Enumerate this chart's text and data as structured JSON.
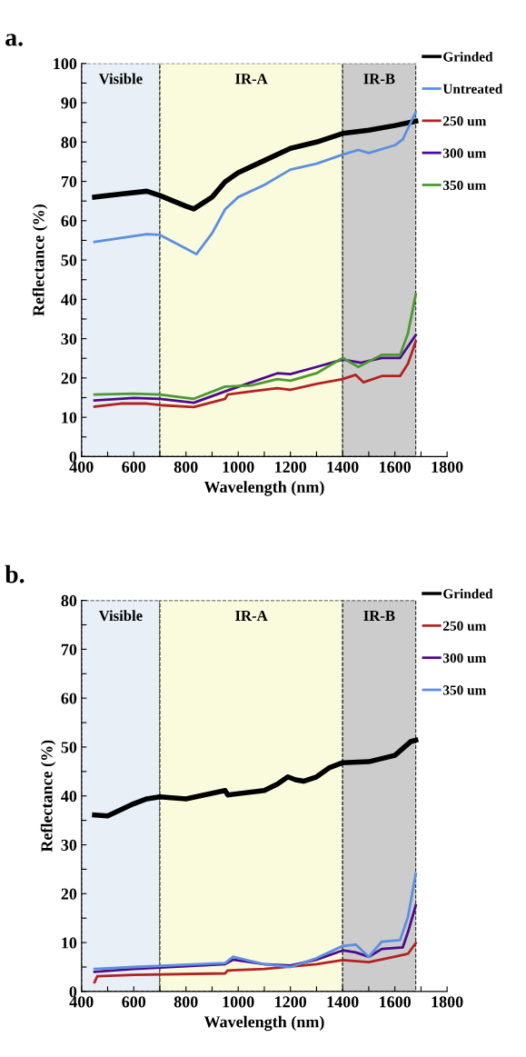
{
  "chart_data": [
    {
      "type": "line",
      "title": "a.",
      "xlabel": "Wavelength (nm)",
      "ylabel": "Reflectance (%)",
      "xlim": [
        400,
        1800
      ],
      "ylim": [
        0,
        100
      ],
      "xticks": [
        400,
        {
          "value": 500,
          "label": null
        },
        600,
        {
          "value": 700,
          "label": null
        },
        800,
        {
          "value": 900,
          "label": null
        },
        1000,
        {
          "value": 1100,
          "label": null
        },
        1200,
        {
          "value": 1300,
          "label": null
        },
        1400,
        {
          "value": 1500,
          "label": null
        },
        1600,
        {
          "value": 1700,
          "label": null
        },
        1800
      ],
      "yticks": [
        0,
        {
          "value": 5,
          "label": null
        },
        10,
        {
          "value": 15,
          "label": null
        },
        20,
        {
          "value": 25,
          "label": null
        },
        30,
        {
          "value": 35,
          "label": null
        },
        40,
        {
          "value": 45,
          "label": null
        },
        50,
        {
          "value": 55,
          "label": null
        },
        60,
        {
          "value": 65,
          "label": null
        },
        70,
        {
          "value": 75,
          "label": null
        },
        80,
        {
          "value": 85,
          "label": null
        },
        90,
        {
          "value": 95,
          "label": null
        },
        100
      ],
      "grid": false,
      "legend": "right",
      "marker": "none",
      "line_style": "solid",
      "bands": [
        {
          "axis": "x",
          "from": 400,
          "to": 700,
          "label": "Visible",
          "color": "#e8eff6"
        },
        {
          "axis": "x",
          "from": 700,
          "to": 1400,
          "label": "IR-A",
          "color": "#fafadc"
        },
        {
          "axis": "x",
          "from": 1400,
          "to": 1680,
          "label": "IR-B",
          "color": "#cccccc"
        }
      ],
      "series": [
        {
          "name": "Grinded",
          "color": "#000000",
          "x": [
            450,
            550,
            650,
            700,
            800,
            830,
            900,
            950,
            1000,
            1100,
            1200,
            1300,
            1400,
            1500,
            1600,
            1680
          ],
          "values": [
            66,
            66.8,
            67.5,
            66.4,
            63.7,
            63,
            66,
            69.9,
            72.2,
            75.3,
            78.4,
            80,
            82.2,
            83,
            84.2,
            85.3
          ]
        },
        {
          "name": "Untreated",
          "color": "#5b8fe0",
          "x": [
            450,
            550,
            650,
            700,
            800,
            840,
            900,
            950,
            1000,
            1100,
            1200,
            1300,
            1400,
            1460,
            1500,
            1600,
            1630,
            1680
          ],
          "values": [
            54.6,
            55.6,
            56.6,
            56.4,
            52.9,
            51.5,
            56.8,
            62.9,
            66,
            69.1,
            73,
            74.5,
            76.8,
            78,
            77.2,
            79.2,
            80.7,
            87.6
          ]
        },
        {
          "name": "250 um",
          "color": "#b22222",
          "x": [
            450,
            550,
            650,
            700,
            830,
            950,
            960,
            1050,
            1150,
            1200,
            1300,
            1400,
            1450,
            1480,
            1550,
            1620,
            1650,
            1680
          ],
          "values": [
            12.7,
            13.5,
            13.5,
            13.1,
            12.6,
            14.7,
            15.8,
            16.6,
            17.4,
            17,
            18.5,
            19.7,
            20.8,
            18.9,
            20.5,
            20.5,
            23.6,
            29.3
          ]
        },
        {
          "name": "300 um",
          "color": "#4b0a8c",
          "x": [
            450,
            600,
            700,
            830,
            950,
            1050,
            1150,
            1200,
            1300,
            1400,
            1470,
            1550,
            1620,
            1680
          ],
          "values": [
            14.3,
            14.9,
            14.7,
            13.7,
            16.6,
            18.9,
            21.2,
            21,
            22.8,
            24.7,
            23.9,
            25.1,
            25.1,
            30.9
          ]
        },
        {
          "name": "350 um",
          "color": "#4a9a30",
          "x": [
            450,
            600,
            700,
            830,
            950,
            1050,
            1150,
            1200,
            1300,
            1400,
            1460,
            1550,
            1620,
            1650,
            1680
          ],
          "values": [
            15.8,
            16,
            15.8,
            14.7,
            17.8,
            18.1,
            19.7,
            19.3,
            21.2,
            25.1,
            22.8,
            25.9,
            25.9,
            31.3,
            41.3
          ]
        }
      ]
    },
    {
      "type": "line",
      "title": "b.",
      "xlabel": "Wavelength (nm)",
      "ylabel": "Reflectance (%)",
      "xlim": [
        400,
        1800
      ],
      "ylim": [
        0,
        80
      ],
      "xticks": [
        400,
        {
          "value": 500,
          "label": null
        },
        600,
        {
          "value": 700,
          "label": null
        },
        800,
        {
          "value": 900,
          "label": null
        },
        1000,
        {
          "value": 1100,
          "label": null
        },
        1200,
        {
          "value": 1300,
          "label": null
        },
        1400,
        {
          "value": 1500,
          "label": null
        },
        1600,
        {
          "value": 1700,
          "label": null
        },
        1800
      ],
      "yticks": [
        0,
        {
          "value": 5,
          "label": null
        },
        10,
        {
          "value": 15,
          "label": null
        },
        20,
        {
          "value": 25,
          "label": null
        },
        30,
        {
          "value": 35,
          "label": null
        },
        40,
        {
          "value": 45,
          "label": null
        },
        50,
        {
          "value": 55,
          "label": null
        },
        60,
        {
          "value": 65,
          "label": null
        },
        70,
        {
          "value": 75,
          "label": null
        },
        80
      ],
      "grid": false,
      "legend": "right",
      "marker": "none",
      "line_style": "solid",
      "bands": [
        {
          "axis": "x",
          "from": 400,
          "to": 700,
          "label": "Visible",
          "color": "#e8eff6"
        },
        {
          "axis": "x",
          "from": 700,
          "to": 1400,
          "label": "IR-A",
          "color": "#fafadc"
        },
        {
          "axis": "x",
          "from": 1400,
          "to": 1680,
          "label": "IR-B",
          "color": "#cccccc"
        }
      ],
      "series": [
        {
          "name": "Grinded",
          "color": "#000000",
          "x": [
            450,
            500,
            600,
            650,
            700,
            800,
            950,
            960,
            1100,
            1150,
            1190,
            1220,
            1250,
            1300,
            1350,
            1400,
            1500,
            1600,
            1660,
            1680
          ],
          "values": [
            36.1,
            35.9,
            38.4,
            39.4,
            39.8,
            39.4,
            41.1,
            40.2,
            41.1,
            42.4,
            43.9,
            43.3,
            43,
            43.9,
            45.8,
            46.8,
            47,
            48.3,
            51.1,
            51.4
          ]
        },
        {
          "name": "250 um",
          "color": "#b22222",
          "x": [
            450,
            460,
            600,
            950,
            960,
            1100,
            1300,
            1400,
            1500,
            1600,
            1650,
            1680
          ],
          "values": [
            1.9,
            3.1,
            3.4,
            3.7,
            4.3,
            4.6,
            5.6,
            6.4,
            6,
            7.1,
            7.7,
            9.9
          ]
        },
        {
          "name": "300 um",
          "color": "#4b0a8c",
          "x": [
            450,
            600,
            950,
            980,
            1100,
            1200,
            1300,
            1400,
            1450,
            1500,
            1550,
            1630,
            1650,
            1680
          ],
          "values": [
            4,
            4.6,
            5.6,
            6.5,
            5.6,
            5.3,
            6.5,
            8.4,
            8,
            7.1,
            8.7,
            9,
            12.1,
            17.6
          ]
        },
        {
          "name": "350 um",
          "color": "#5b8fe0",
          "x": [
            450,
            600,
            950,
            980,
            1050,
            1100,
            1200,
            1300,
            1400,
            1450,
            1500,
            1550,
            1620,
            1650,
            1680
          ],
          "values": [
            4.6,
            5,
            5.8,
            7.1,
            6.2,
            5.6,
            5,
            6.8,
            9.3,
            9.6,
            7.1,
            10.2,
            10.5,
            15.2,
            24.1
          ]
        }
      ]
    }
  ]
}
